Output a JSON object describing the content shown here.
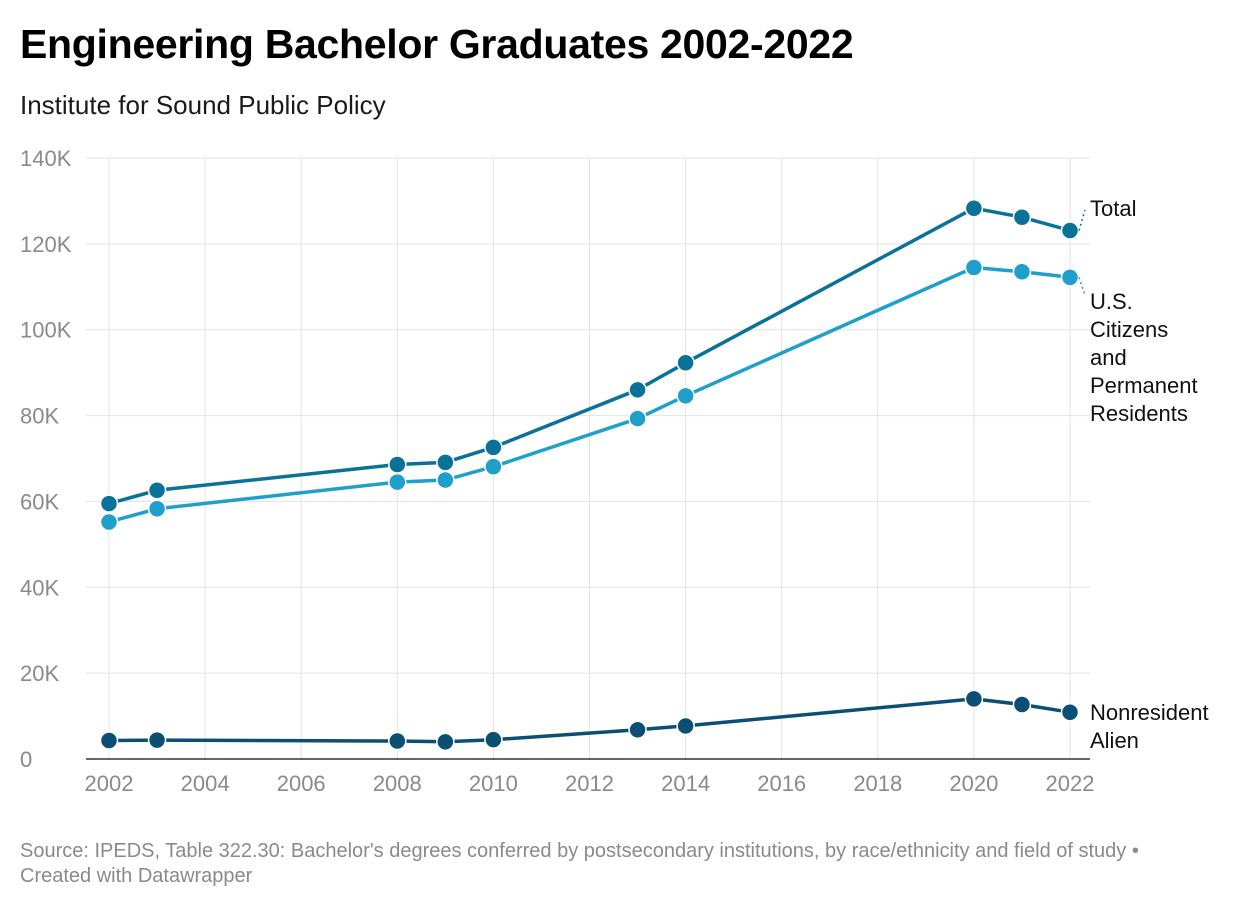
{
  "header": {
    "title": "Engineering Bachelor Graduates 2002-2022",
    "subtitle": "Institute for Sound Public Policy"
  },
  "footer": {
    "source": "Source: IPEDS, Table 322.30: Bachelor's degrees conferred by postsecondary institutions, by race/ethnicity and field of study • Created with Datawrapper"
  },
  "chart_data": {
    "type": "line",
    "title": "Engineering Bachelor Graduates 2002-2022",
    "subtitle": "Institute for Sound Public Policy",
    "xlabel": "",
    "ylabel": "",
    "x_ticks": [
      2002,
      2004,
      2006,
      2008,
      2010,
      2012,
      2014,
      2016,
      2018,
      2020,
      2022
    ],
    "y_ticks": [
      0,
      20000,
      40000,
      60000,
      80000,
      100000,
      120000,
      140000
    ],
    "y_tick_labels": [
      "0",
      "20K",
      "40K",
      "60K",
      "80K",
      "100K",
      "120K",
      "140K"
    ],
    "xlim": [
      2002,
      2022
    ],
    "ylim": [
      0,
      140000
    ],
    "grid": true,
    "legend": "direct labels at right end of lines",
    "series": [
      {
        "name": "Total",
        "label_lines": [
          "Total"
        ],
        "color": "#0a7199",
        "points": [
          [
            2002,
            59500
          ],
          [
            2003,
            62600
          ],
          [
            2008,
            68600
          ],
          [
            2009,
            69100
          ],
          [
            2010,
            72600
          ],
          [
            2013,
            86000
          ],
          [
            2014,
            92300
          ],
          [
            2020,
            128300
          ],
          [
            2021,
            126200
          ],
          [
            2022,
            123100
          ]
        ]
      },
      {
        "name": "U.S. Citizens and Permanent Residents",
        "label_lines": [
          "U.S.",
          "Citizens",
          "and",
          "Permanent",
          "Residents"
        ],
        "color": "#1ea0cb",
        "points": [
          [
            2002,
            55200
          ],
          [
            2003,
            58300
          ],
          [
            2008,
            64500
          ],
          [
            2009,
            65000
          ],
          [
            2010,
            68100
          ],
          [
            2013,
            79300
          ],
          [
            2014,
            84600
          ],
          [
            2020,
            114500
          ],
          [
            2021,
            113500
          ],
          [
            2022,
            112200
          ]
        ]
      },
      {
        "name": "Nonresident Alien",
        "label_lines": [
          "Nonresident",
          "Alien"
        ],
        "color": "#0b4f73",
        "points": [
          [
            2002,
            4300
          ],
          [
            2003,
            4400
          ],
          [
            2008,
            4200
          ],
          [
            2009,
            4000
          ],
          [
            2010,
            4500
          ],
          [
            2013,
            6800
          ],
          [
            2014,
            7700
          ],
          [
            2020,
            14000
          ],
          [
            2021,
            12700
          ],
          [
            2022,
            10900
          ]
        ]
      }
    ]
  }
}
